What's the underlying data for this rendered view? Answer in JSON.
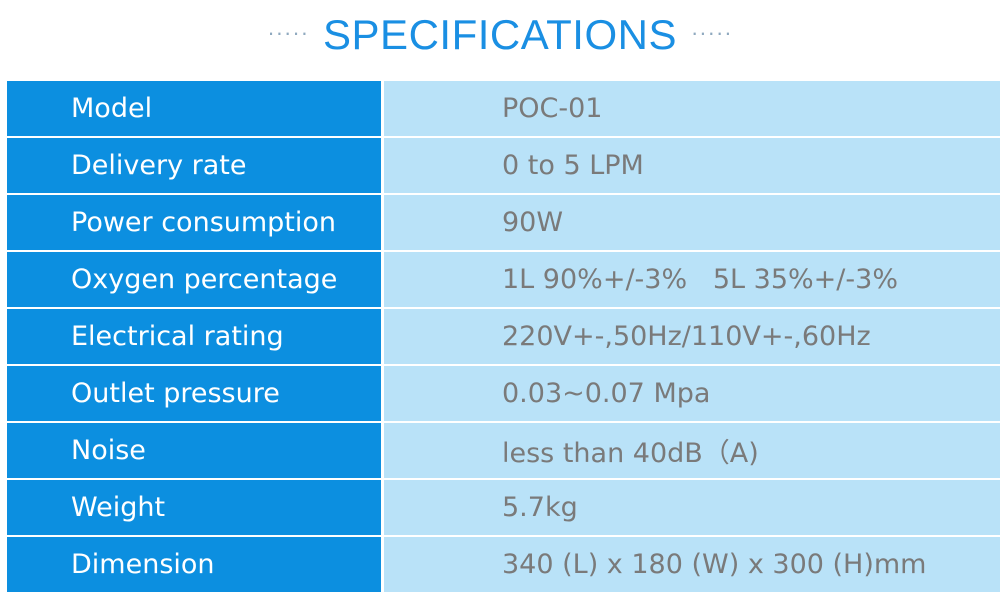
{
  "header": {
    "left_dots": "·····",
    "title": "SPECIFICATIONS",
    "right_dots": "·····"
  },
  "specs": [
    {
      "label": "Model",
      "value": "POC-01"
    },
    {
      "label": "Delivery rate",
      "value": "0 to 5 LPM"
    },
    {
      "label": "Power consumption",
      "value": "90W"
    },
    {
      "label": "Oxygen percentage",
      "value": "1L 90%+/-3%   5L 35%+/-3%"
    },
    {
      "label": "Electrical rating",
      "value": "220V+-,50Hz/110V+-,60Hz"
    },
    {
      "label": "Outlet pressure",
      "value": "0.03~0.07 Mpa"
    },
    {
      "label": "Noise",
      "value": "less than 40dB（A)"
    },
    {
      "label": "Weight",
      "value": "5.7kg"
    },
    {
      "label": "Dimension",
      "value": "340 (L) x 180 (W) x 300 (H)mm"
    }
  ],
  "colors": {
    "title": "#1a8fe3",
    "label_bg": "#0c8fe0",
    "value_bg": "#b9e2f8",
    "value_text": "#7a7a7a"
  }
}
